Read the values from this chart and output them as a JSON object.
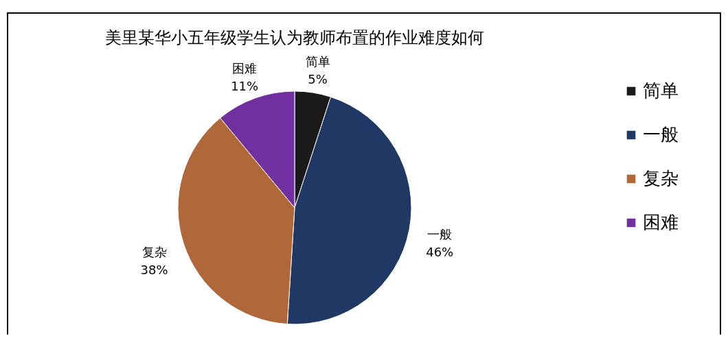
{
  "chart_data": {
    "type": "pie",
    "title": "美里某华小五年级学生认为教师布置的作业难度如何",
    "categories": [
      "简单",
      "一般",
      "复杂",
      "困难"
    ],
    "values": [
      5,
      46,
      38,
      11
    ],
    "value_labels": [
      "5%",
      "46%",
      "38%",
      "11%"
    ],
    "colors": [
      "#1a1a1a",
      "#1f3864",
      "#b0683a",
      "#7030a0"
    ],
    "legend": "right"
  }
}
